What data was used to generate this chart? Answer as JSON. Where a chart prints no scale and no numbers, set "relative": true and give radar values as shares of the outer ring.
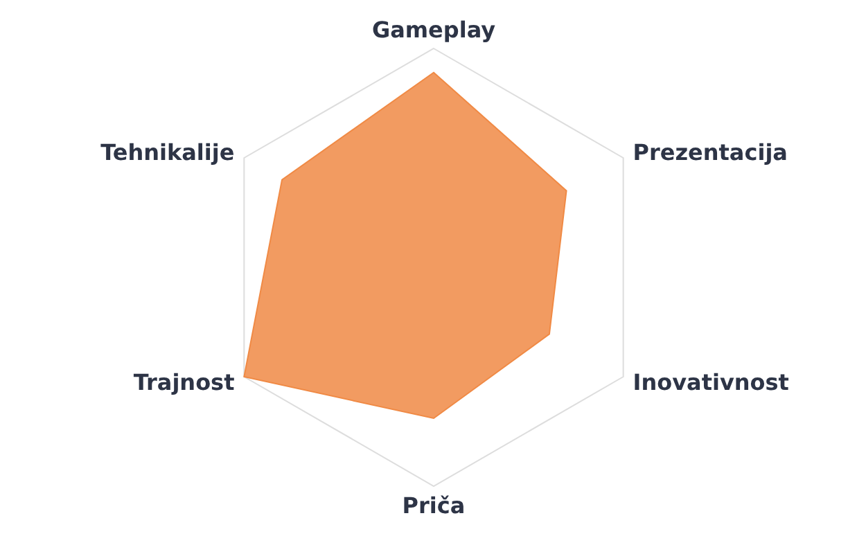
{
  "chart_data": {
    "type": "radar",
    "categories": [
      "Gameplay",
      "Prezentacija",
      "Inovativnost",
      "Priča",
      "Trajnost",
      "Tehnikalije"
    ],
    "series": [
      {
        "color": "#f08a45",
        "values": [
          0.89,
          0.7,
          0.61,
          0.69,
          1.0,
          0.8
        ]
      }
    ],
    "relative": true,
    "grid": true
  }
}
